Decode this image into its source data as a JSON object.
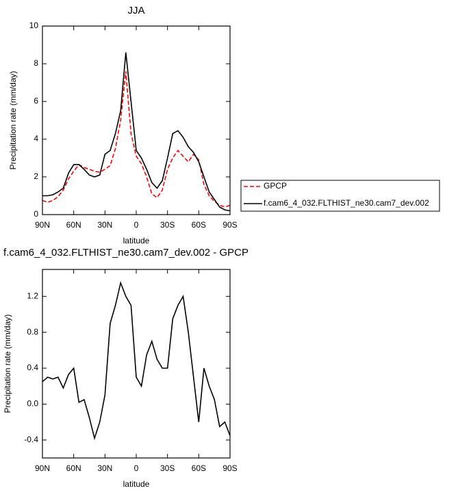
{
  "chart_data": [
    {
      "type": "line",
      "title": "JJA",
      "x_label": "latitude",
      "y_label": "Precipitation rate (mm/day)",
      "x": [
        90,
        85,
        80,
        75,
        70,
        65,
        60,
        55,
        50,
        45,
        40,
        35,
        30,
        25,
        20,
        15,
        10,
        5,
        0,
        -5,
        -10,
        -15,
        -20,
        -25,
        -30,
        -35,
        -40,
        -45,
        -50,
        -55,
        -60,
        -65,
        -70,
        -75,
        -80,
        -85,
        -90
      ],
      "xlim": [
        90,
        -90
      ],
      "xticks": [
        {
          "value": 90,
          "label": "90N"
        },
        {
          "value": 60,
          "label": "60N"
        },
        {
          "value": 30,
          "label": "30N"
        },
        0,
        {
          "value": -30,
          "label": "30S"
        },
        {
          "value": -60,
          "label": "60S"
        },
        {
          "value": -90,
          "label": "90S"
        }
      ],
      "ylim": [
        0,
        10
      ],
      "yticks": [
        0,
        2,
        4,
        6,
        8,
        10
      ],
      "legend": "outside-right",
      "series": [
        {
          "name": "GPCP",
          "color": "#ff0000",
          "dash": "dashed",
          "values": [
            0.75,
            0.65,
            0.75,
            0.95,
            1.3,
            1.9,
            2.3,
            2.65,
            2.5,
            2.4,
            2.3,
            2.25,
            2.4,
            2.6,
            3.5,
            5.0,
            7.6,
            4.3,
            3.1,
            2.7,
            2.0,
            1.1,
            0.9,
            1.3,
            2.4,
            3.0,
            3.4,
            3.1,
            2.8,
            3.2,
            2.9,
            1.6,
            1.0,
            0.7,
            0.5,
            0.4,
            0.5
          ]
        },
        {
          "name": "f.cam6_4_032.FLTHIST_ne30.cam7_dev.002",
          "color": "#000000",
          "dash": "solid",
          "values": [
            1.0,
            1.0,
            1.05,
            1.2,
            1.4,
            2.2,
            2.65,
            2.65,
            2.4,
            2.1,
            2.0,
            2.1,
            3.2,
            3.4,
            4.3,
            5.5,
            8.6,
            6.0,
            3.4,
            3.0,
            2.4,
            1.7,
            1.4,
            1.8,
            3.0,
            4.3,
            4.45,
            4.1,
            3.6,
            3.3,
            2.8,
            2.0,
            1.2,
            0.8,
            0.4,
            0.25,
            0.2
          ]
        }
      ]
    },
    {
      "type": "line",
      "title": "f.cam6_4_032.FLTHIST_ne30.cam7_dev.002 - GPCP",
      "x_label": "latitude",
      "y_label": "Precipitation rate (mm/day)",
      "x": [
        90,
        85,
        80,
        75,
        70,
        65,
        60,
        55,
        50,
        45,
        40,
        35,
        30,
        25,
        20,
        15,
        10,
        5,
        0,
        -5,
        -10,
        -15,
        -20,
        -25,
        -30,
        -35,
        -40,
        -45,
        -50,
        -55,
        -60,
        -65,
        -70,
        -75,
        -80,
        -85,
        -90
      ],
      "xlim": [
        90,
        -90
      ],
      "xticks": [
        {
          "value": 90,
          "label": "90N"
        },
        {
          "value": 60,
          "label": "60N"
        },
        {
          "value": 30,
          "label": "30N"
        },
        0,
        {
          "value": -30,
          "label": "30S"
        },
        {
          "value": -60,
          "label": "60S"
        },
        {
          "value": -90,
          "label": "90S"
        }
      ],
      "ylim": [
        -0.6,
        1.5
      ],
      "yticks": [
        -0.4,
        {
          "value": 0,
          "label": "0.0"
        },
        0.4,
        0.8,
        1.2
      ],
      "series": [
        {
          "color": "#000000",
          "dash": "solid",
          "values": [
            0.25,
            0.3,
            0.28,
            0.3,
            0.18,
            0.33,
            0.4,
            0.02,
            0.05,
            -0.15,
            -0.38,
            -0.2,
            0.1,
            0.9,
            1.1,
            1.35,
            1.2,
            1.1,
            0.3,
            0.2,
            0.55,
            0.7,
            0.5,
            0.4,
            0.4,
            0.95,
            1.1,
            1.2,
            0.8,
            0.3,
            -0.2,
            0.4,
            0.2,
            0.05,
            -0.25,
            -0.2,
            -0.35
          ]
        }
      ]
    }
  ]
}
